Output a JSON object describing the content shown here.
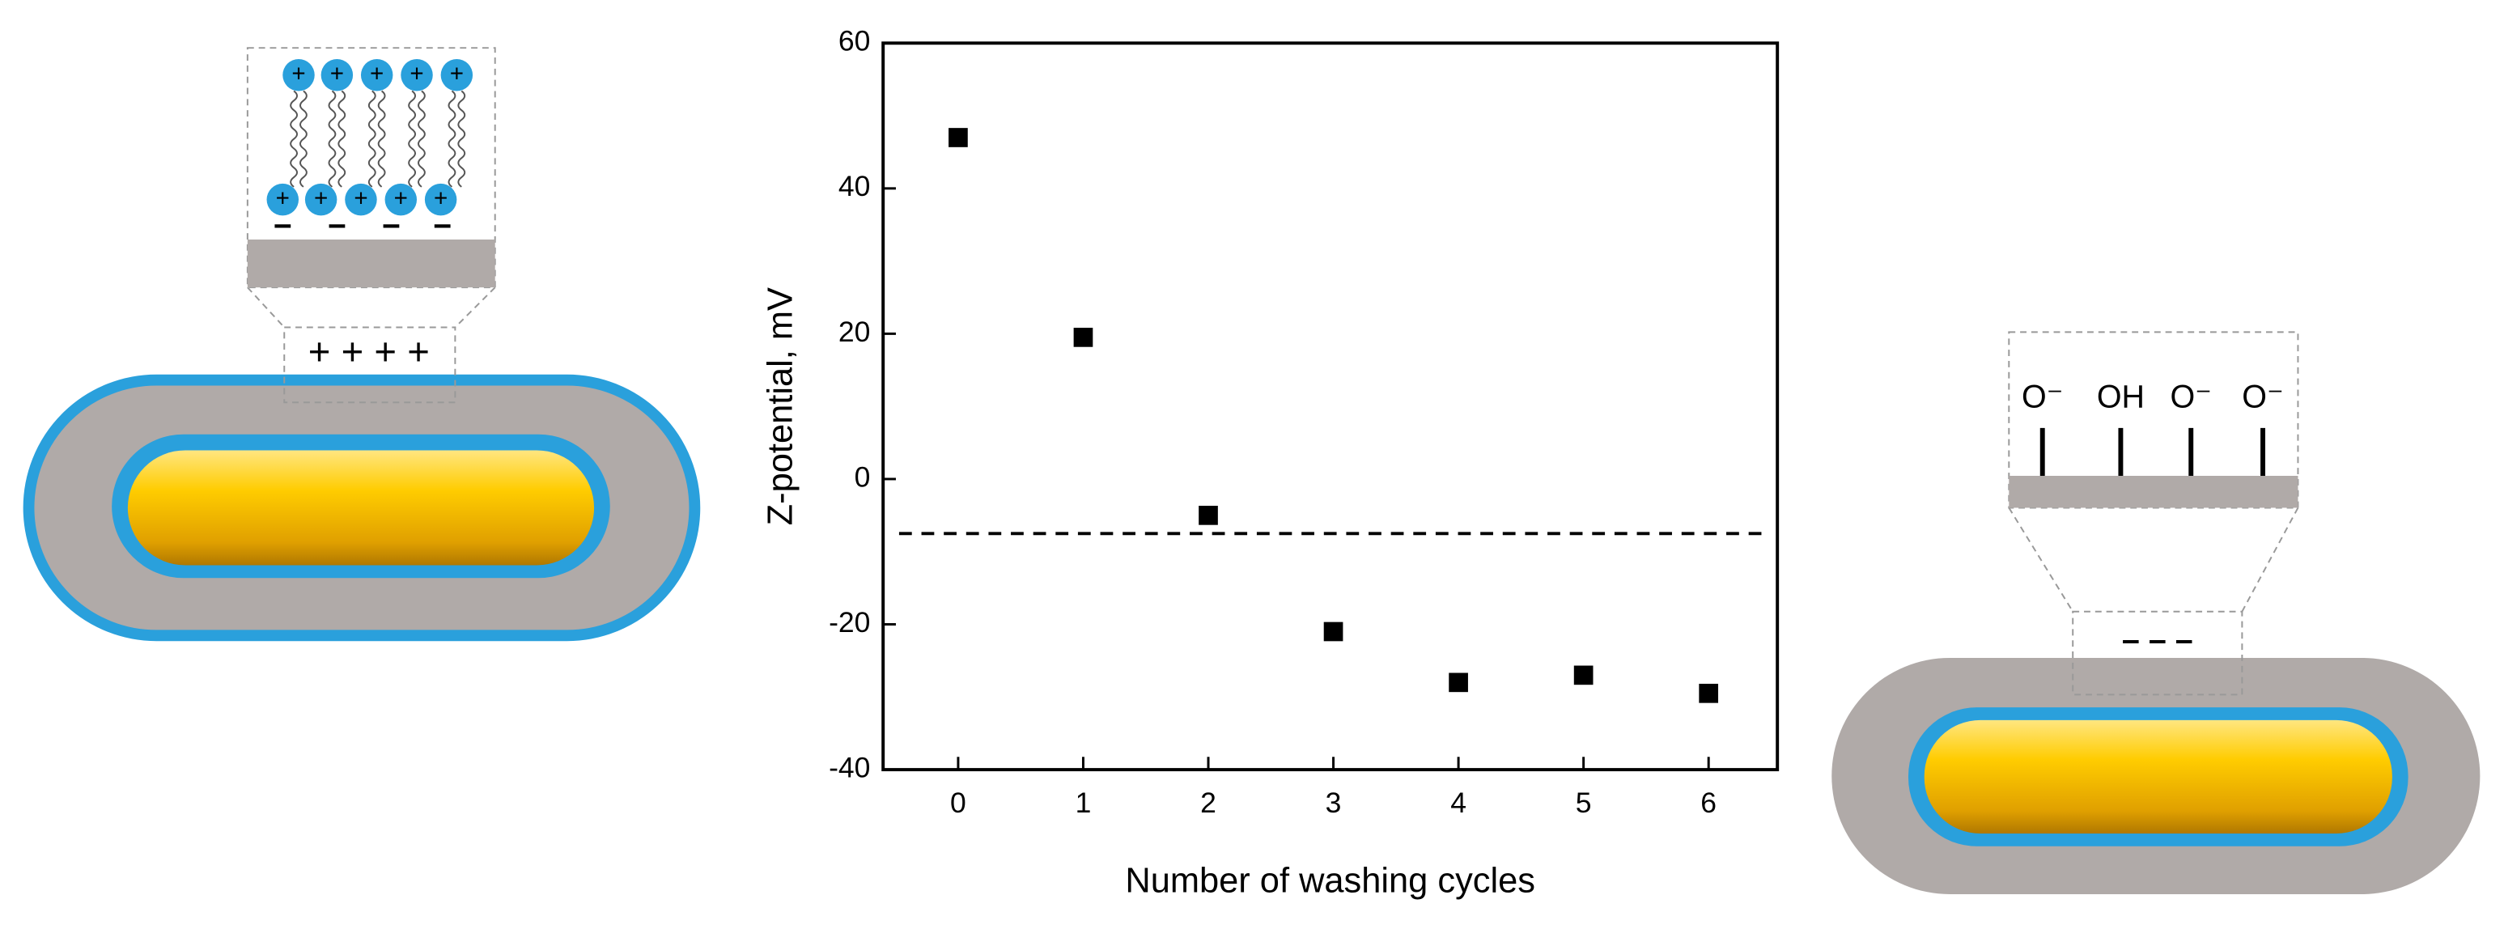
{
  "chart_data": {
    "type": "scatter",
    "x_label": "Number of washing cycles",
    "y_label": "Z-potential, mV",
    "x": [
      0,
      1,
      2,
      3,
      4,
      5,
      6
    ],
    "values": [
      47,
      19.5,
      -5,
      -21,
      -28,
      -27,
      -29.5
    ],
    "color": "#000000",
    "reference_line": -7.5,
    "xlim": [
      -0.6,
      6.55
    ],
    "xticks": [
      0,
      1,
      2,
      3,
      4,
      5,
      6
    ],
    "ylim": [
      -40,
      60
    ],
    "yticks": [
      -40,
      -20,
      0,
      20,
      40,
      60
    ]
  },
  "illustrations": {
    "head_charge": "+",
    "surface_charge": "−",
    "left_surface": "+ + + +",
    "right_surface": "– – –",
    "right_groups": [
      "O⁻",
      "OH",
      "O⁻",
      "O⁻"
    ]
  }
}
